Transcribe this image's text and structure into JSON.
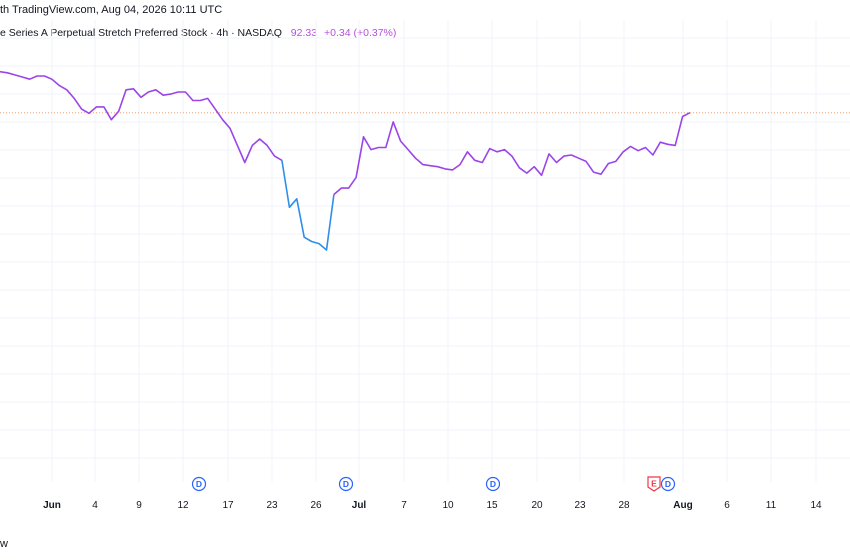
{
  "header": {
    "caption": "th TradingView.com, Aug 04, 2026 10:11 UTC"
  },
  "legend": {
    "symbol": "e Series A Perpetual Stretch Preferred Stock · 4h · NASDAQ",
    "price": "92.33",
    "change": "+0.34 (+0.37%)"
  },
  "watermark": "w",
  "colors": {
    "line": "#9b45e8",
    "line_low": "#2f8fe8",
    "last_price_line": "#f0a070",
    "dividend": "#2962ff",
    "earnings": "#f23645",
    "grid": "#f0f3fa"
  },
  "events": [
    {
      "type": "dividend",
      "label": "D",
      "date": "Jun 13"
    },
    {
      "type": "dividend",
      "label": "D",
      "date": "Jun 27"
    },
    {
      "type": "dividend",
      "label": "D",
      "date": "Jul 15"
    },
    {
      "type": "earnings",
      "label": "E",
      "date": "Jul 31"
    },
    {
      "type": "dividend",
      "label": "D",
      "date": "Aug 1"
    }
  ],
  "chart_data": {
    "type": "line",
    "x_ticks": [
      {
        "label": "Jun",
        "bold": true
      },
      {
        "label": "4"
      },
      {
        "label": "9"
      },
      {
        "label": "12"
      },
      {
        "label": "17"
      },
      {
        "label": "23"
      },
      {
        "label": "26"
      },
      {
        "label": "Jul",
        "bold": true
      },
      {
        "label": "7"
      },
      {
        "label": "10"
      },
      {
        "label": "15"
      },
      {
        "label": "20"
      },
      {
        "label": "23"
      },
      {
        "label": "28"
      },
      {
        "label": "Aug",
        "bold": true
      },
      {
        "label": "6"
      },
      {
        "label": "11"
      },
      {
        "label": "14"
      }
    ],
    "last_price": 92.33,
    "ylim": [
      75.6,
      95.5
    ],
    "series": [
      {
        "values": [
          94.25,
          94.2,
          94.1,
          94.0,
          93.9,
          94.05,
          94.05,
          93.9,
          93.6,
          93.4,
          93.0,
          92.5,
          92.3,
          92.6,
          92.6,
          92.0,
          92.4,
          93.4,
          93.45,
          93.05,
          93.3,
          93.4,
          93.15,
          93.2,
          93.3,
          93.3,
          92.9,
          92.9,
          93.0,
          92.5,
          92.0,
          91.6,
          90.8,
          90.0,
          90.8,
          91.1,
          90.8,
          90.3,
          90.1,
          87.9,
          88.3,
          86.5,
          86.3,
          86.2,
          85.9,
          88.5,
          88.8,
          88.8,
          89.3,
          91.2,
          90.6,
          90.7,
          90.7,
          91.9,
          91.0,
          90.6,
          90.2,
          89.9,
          89.85,
          89.8,
          89.7,
          89.65,
          89.9,
          90.5,
          90.1,
          90.0,
          90.65,
          90.5,
          90.6,
          90.3,
          89.75,
          89.5,
          89.8,
          89.4,
          90.4,
          90.0,
          90.3,
          90.35,
          90.2,
          90.05,
          89.55,
          89.45,
          89.95,
          90.05,
          90.5,
          90.75,
          90.55,
          90.7,
          90.35,
          90.95,
          90.85,
          90.8,
          92.15,
          92.33
        ]
      }
    ],
    "low_segment": {
      "from_index": 38,
      "to_index": 45
    }
  }
}
